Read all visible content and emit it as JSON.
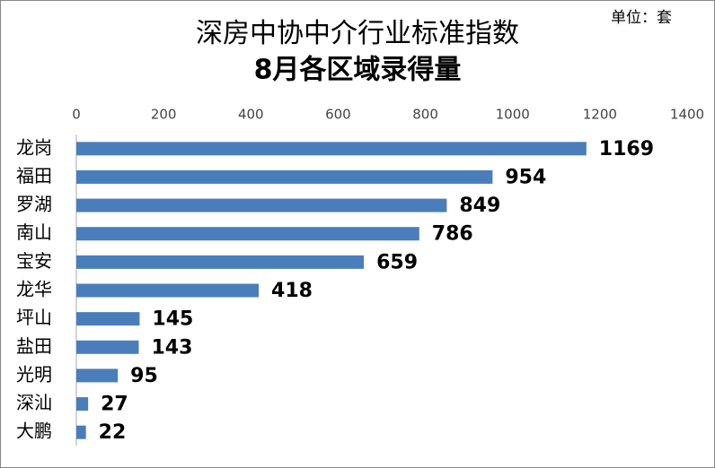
{
  "chart_data": {
    "type": "bar",
    "orientation": "horizontal",
    "title": "深房中协中介行业标准指数",
    "subtitle": "8月各区域录得量",
    "unit_label": "单位：套",
    "categories": [
      "龙岗",
      "福田",
      "罗湖",
      "南山",
      "宝安",
      "龙华",
      "坪山",
      "盐田",
      "光明",
      "深汕",
      "大鹏"
    ],
    "values": [
      1169,
      954,
      849,
      786,
      659,
      418,
      145,
      143,
      95,
      27,
      22
    ],
    "color": "#4a7ebb",
    "xlim": [
      0,
      1400
    ],
    "xticks": [
      0,
      200,
      400,
      600,
      800,
      1000,
      1200,
      1400
    ],
    "grid": false
  }
}
